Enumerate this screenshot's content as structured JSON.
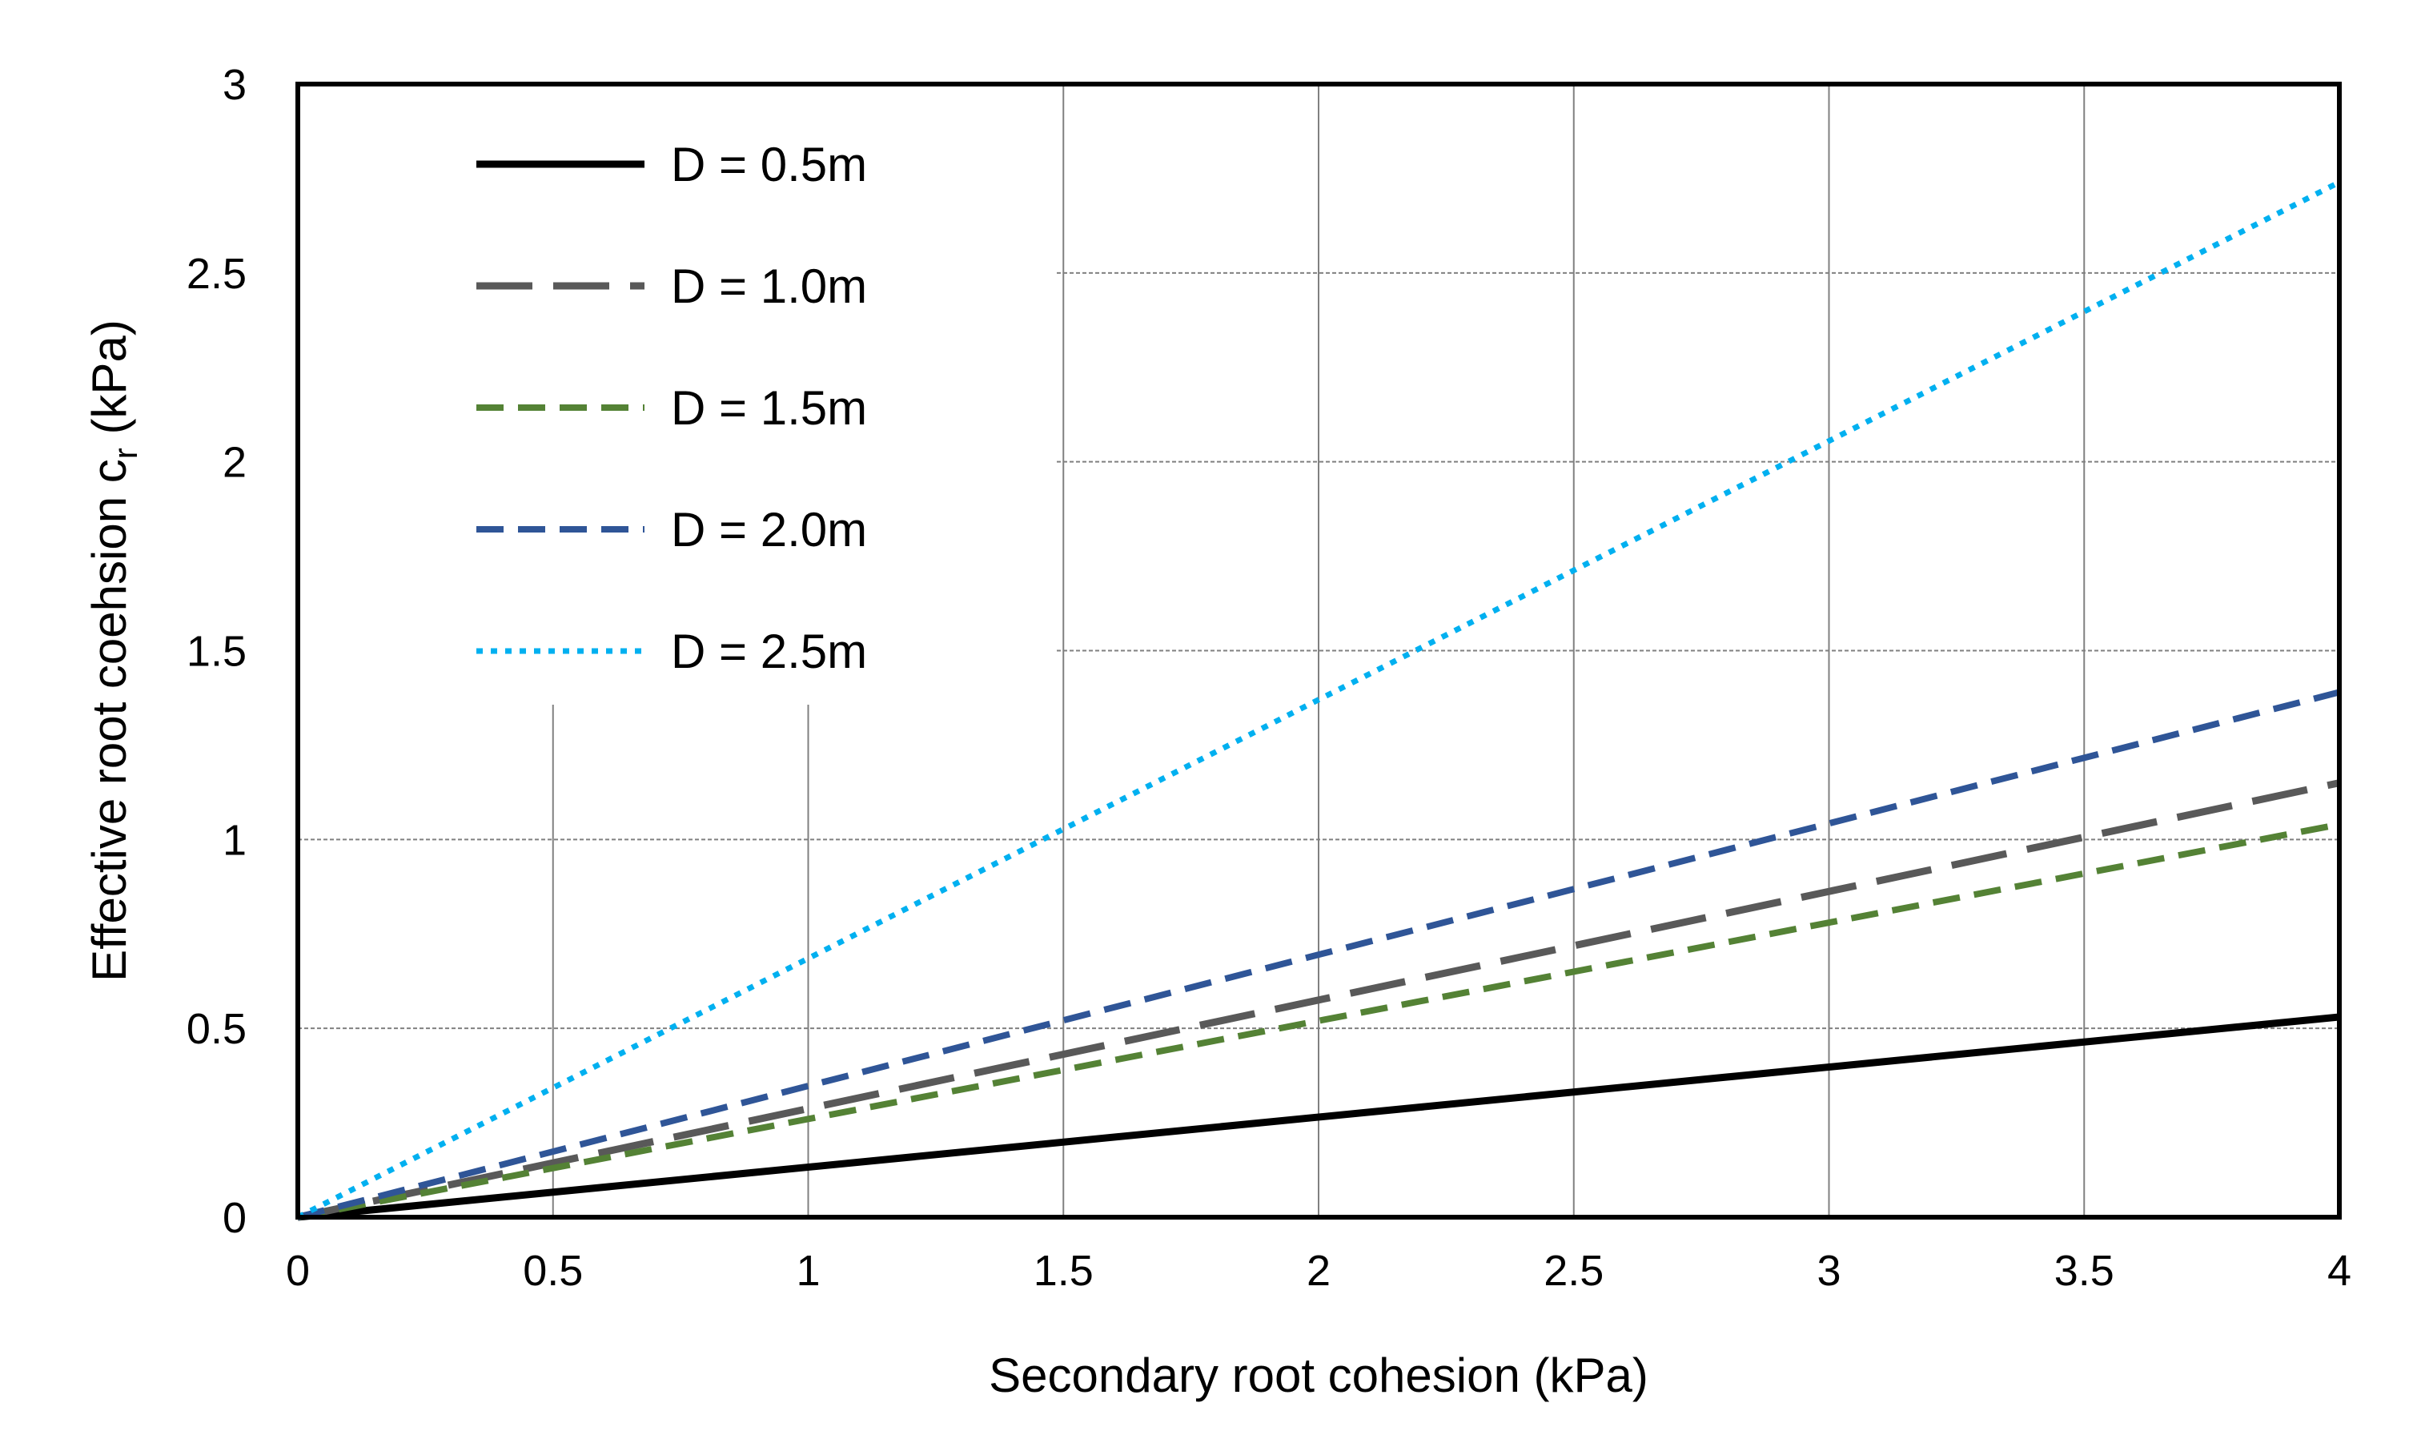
{
  "chart_data": {
    "type": "line",
    "xlabel": "Secondary root cohesion (kPa)",
    "ylabel": {
      "main": "Effective root coehsion c",
      "subscript": "r",
      "unit": " (kPa)"
    },
    "xlim": [
      0,
      4
    ],
    "ylim": [
      0,
      3
    ],
    "xticks": [
      0,
      0.5,
      1,
      1.5,
      2,
      2.5,
      3,
      3.5,
      4
    ],
    "xtick_labels": [
      "0",
      "0.5",
      "1",
      "1.5",
      "2",
      "2.5",
      "3",
      "3.5",
      "4"
    ],
    "yticks": [
      0,
      0.5,
      1,
      1.5,
      2,
      2.5,
      3
    ],
    "ytick_labels": [
      "0",
      "0.5",
      "1",
      "1.5",
      "2",
      "2.5",
      "3"
    ],
    "grid": true,
    "legend_position": "top-left",
    "series": [
      {
        "name": "D = 0.5m",
        "color": "#000000",
        "style": "solid",
        "x": [
          0,
          4
        ],
        "y": [
          0,
          0.53
        ]
      },
      {
        "name": "D = 1.0m",
        "color": "#595959",
        "style": "long-dash",
        "x": [
          0,
          4
        ],
        "y": [
          0,
          1.15
        ]
      },
      {
        "name": "D = 1.5m",
        "color": "#548235",
        "style": "dash",
        "x": [
          0,
          4
        ],
        "y": [
          0,
          1.04
        ]
      },
      {
        "name": "D = 2.0m",
        "color": "#2F5597",
        "style": "dash",
        "x": [
          0,
          4
        ],
        "y": [
          0,
          1.39
        ]
      },
      {
        "name": "D = 2.5m",
        "color": "#00B0F0",
        "style": "dot",
        "x": [
          0,
          4
        ],
        "y": [
          0,
          2.74
        ]
      }
    ]
  }
}
